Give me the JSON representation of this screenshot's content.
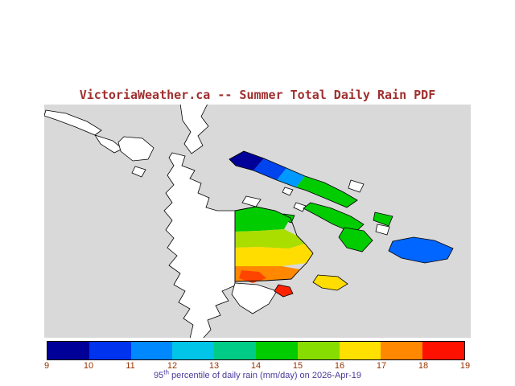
{
  "title": "VictoriaWeather.ca -- Summer Total Daily Rain PDF",
  "caption": {
    "prefix": "95",
    "superscript": "th",
    "rest": " percentile of daily rain (mm/day) on 2026-Apr-19"
  },
  "colorbar": {
    "tick_labels": [
      "9",
      "10",
      "11",
      "12",
      "13",
      "14",
      "15",
      "16",
      "17",
      "18",
      "19"
    ],
    "segment_colors": [
      "#000099",
      "#0033EE",
      "#0088FF",
      "#00C4E8",
      "#00CC88",
      "#00CC00",
      "#88DD00",
      "#FFE000",
      "#FF8800",
      "#FF1100"
    ],
    "border_color": "#000000",
    "units": "mm/day",
    "range_min": 9,
    "range_max": 19
  },
  "colors": {
    "title": "#A03030",
    "tick_labels": "#993300",
    "caption": "#4B3A9B"
  },
  "map": {
    "colors": {
      "gray": "#D9D9D9",
      "white": "#FFFFFF",
      "outline": "#000000",
      "navy": "#000099",
      "blue": "#0044EE",
      "lightblue": "#0099FF",
      "steelblue": "#0066FF",
      "green": "#00CC00",
      "yellowgreen": "#AADD00",
      "yellow": "#FFDD00",
      "orange": "#FF8800",
      "redorange": "#FF4400",
      "red": "#FF2200"
    }
  }
}
